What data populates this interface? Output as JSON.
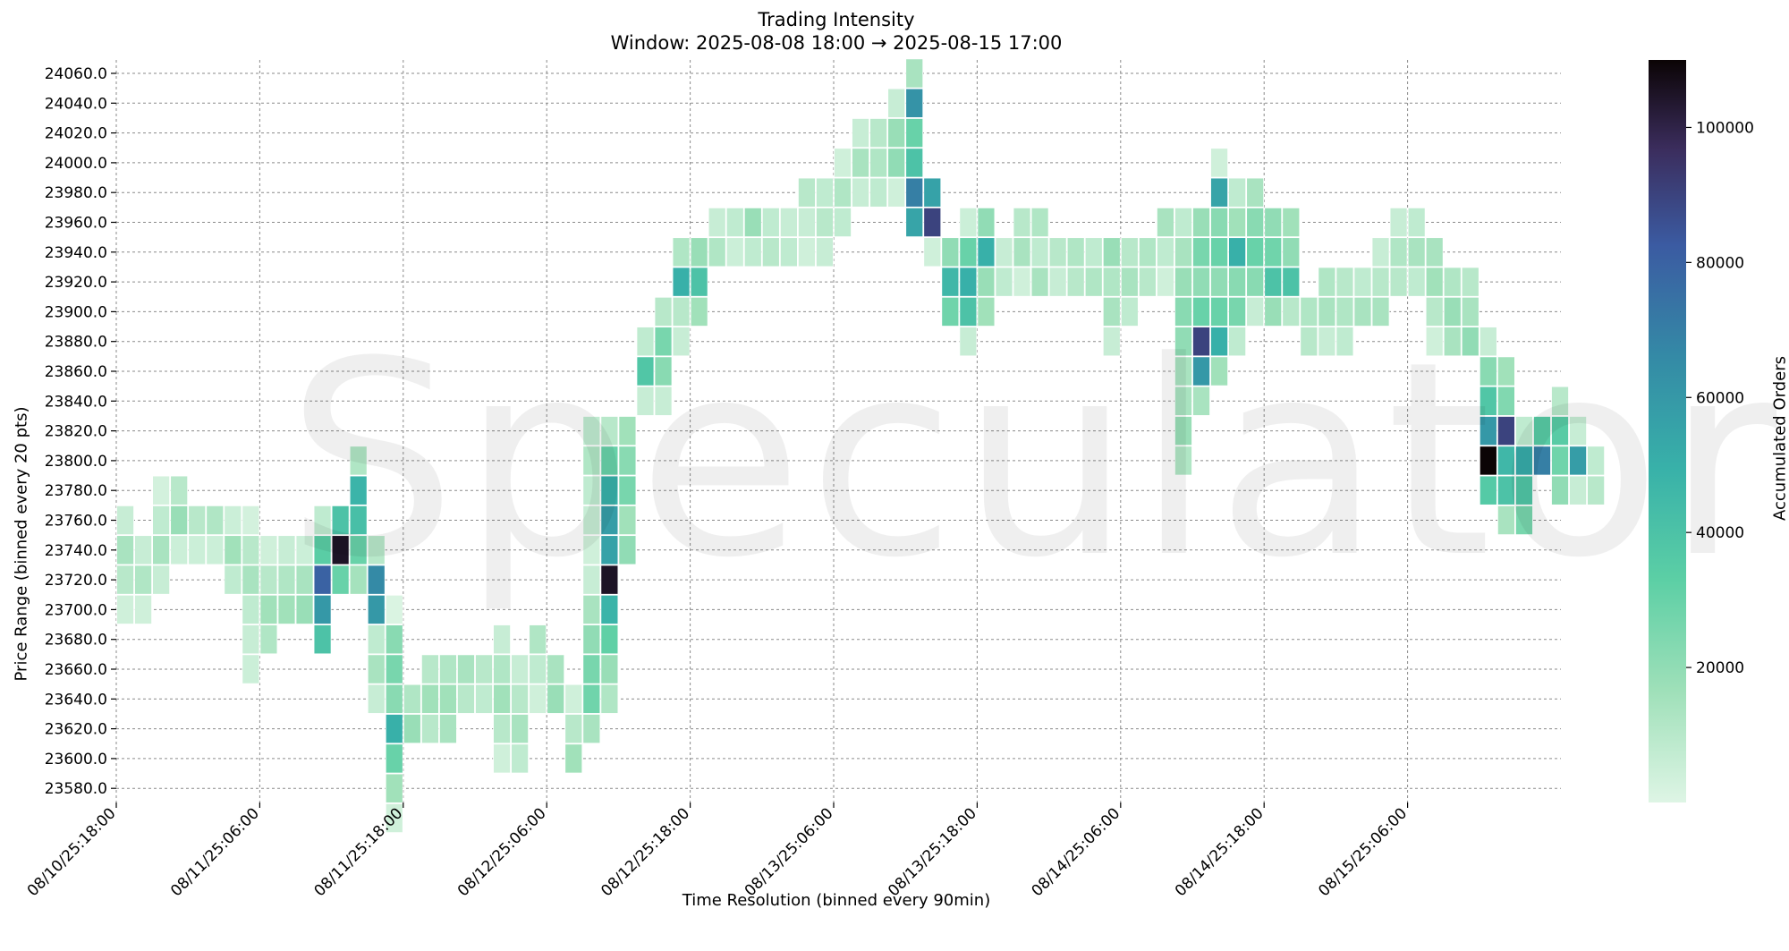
{
  "chart_data": {
    "type": "heatmap",
    "title": "Trading Intensity",
    "subtitle": "Window: 2025-08-08 18:00 → 2025-08-15 17:00",
    "xlabel": "Time Resolution (binned every 90min)",
    "ylabel": "Price Range (binned every 20 pts)",
    "colorbar_label": "Accumulated Orders",
    "colorbar_ticks": [
      "20000",
      "40000",
      "60000",
      "80000",
      "100000"
    ],
    "colorbar_range": [
      0,
      110000
    ],
    "x_tick_labels": [
      "08/10/25:18:00",
      "08/11/25:06:00",
      "08/11/25:18:00",
      "08/12/25:06:00",
      "08/12/25:18:00",
      "08/13/25:06:00",
      "08/13/25:18:00",
      "08/14/25:06:00",
      "08/14/25:18:00",
      "08/15/25:06:00"
    ],
    "y_tick_labels": [
      "24060.0",
      "24040.0",
      "24020.0",
      "24000.0",
      "23980.0",
      "23960.0",
      "23940.0",
      "23920.0",
      "23900.0",
      "23880.0",
      "23860.0",
      "23840.0",
      "23820.0",
      "23800.0",
      "23780.0",
      "23760.0",
      "23740.0",
      "23720.0",
      "23700.0",
      "23680.0",
      "23660.0",
      "23640.0",
      "23620.0",
      "23600.0",
      "23580.0"
    ],
    "columns": [
      {
        "low": 23700,
        "high": 23760,
        "v": [
          6000,
          14000,
          10000,
          4000
        ]
      },
      {
        "low": 23700,
        "high": 23740,
        "v": [
          6000,
          12000,
          4000
        ]
      },
      {
        "low": 23720,
        "high": 23780,
        "v": [
          3000,
          8000,
          14000,
          6000
        ]
      },
      {
        "low": 23740,
        "high": 23780,
        "v": [
          10000,
          18000,
          5000
        ]
      },
      {
        "low": 23740,
        "high": 23760,
        "v": [
          10000,
          5000
        ]
      },
      {
        "low": 23740,
        "high": 23760,
        "v": [
          12000,
          5000
        ]
      },
      {
        "low": 23720,
        "high": 23760,
        "v": [
          5000,
          16000,
          8000
        ]
      },
      {
        "low": 23660,
        "high": 23760,
        "v": [
          3000,
          10000,
          14000,
          8000,
          6000,
          5000
        ]
      },
      {
        "low": 23680,
        "high": 23740,
        "v": [
          4000,
          10000,
          16000,
          12000
        ]
      },
      {
        "low": 23700,
        "high": 23740,
        "v": [
          6000,
          12000,
          16000
        ]
      },
      {
        "low": 23700,
        "high": 23740,
        "v": [
          5000,
          14000,
          18000
        ]
      },
      {
        "low": 23680,
        "high": 23760,
        "v": [
          8000,
          34000,
          80000,
          60000,
          40000
        ]
      },
      {
        "low": 23720,
        "high": 23760,
        "v": [
          40000,
          105000,
          30000
        ]
      },
      {
        "low": 23720,
        "high": 23800,
        "v": [
          12000,
          48000,
          42000,
          30000,
          15000
        ]
      },
      {
        "low": 23640,
        "high": 23740,
        "v": [
          10000,
          66000,
          60000,
          8000,
          14000,
          6000
        ]
      },
      {
        "low": 23580,
        "high": 23700,
        "v": [
          1000,
          22000,
          26000,
          22000,
          50000,
          30000,
          16000,
          4000
        ]
      },
      {
        "low": 23620,
        "high": 23640,
        "v": [
          12000,
          18000
        ]
      },
      {
        "low": 23620,
        "high": 23660,
        "v": [
          10000,
          16000,
          10000
        ]
      },
      {
        "low": 23620,
        "high": 23660,
        "v": [
          12000,
          16000,
          14000
        ]
      },
      {
        "low": 23640,
        "high": 23660,
        "v": [
          14000,
          10000
        ]
      },
      {
        "low": 23640,
        "high": 23660,
        "v": [
          10000,
          8000
        ]
      },
      {
        "low": 23600,
        "high": 23680,
        "v": [
          6000,
          12000,
          16000,
          10000,
          4000
        ]
      },
      {
        "low": 23600,
        "high": 23660,
        "v": [
          6000,
          10000,
          14000,
          8000
        ]
      },
      {
        "low": 23640,
        "high": 23680,
        "v": [
          12000,
          8000,
          4000
        ]
      },
      {
        "low": 23640,
        "high": 23660,
        "v": [
          14000,
          18000
        ]
      },
      {
        "low": 23600,
        "high": 23640,
        "v": [
          4000,
          10000,
          16000
        ]
      },
      {
        "low": 23620,
        "high": 23820,
        "v": [
          8000,
          12000,
          8000,
          6000,
          4000,
          6000,
          14000,
          20000,
          26000,
          28000,
          14000
        ]
      },
      {
        "low": 23620,
        "high": 23820,
        "v": [
          10000,
          30000,
          50000,
          58000,
          56000,
          105000,
          48000,
          32000,
          18000,
          12000
        ]
      },
      {
        "low": 23740,
        "high": 23820,
        "v": [
          16000,
          22000,
          26000,
          16000,
          20000
        ]
      },
      {
        "low": 23840,
        "high": 23880,
        "v": [
          8000,
          38000,
          6000
        ]
      },
      {
        "low": 23840,
        "high": 23900,
        "v": [
          10000,
          26000,
          22000,
          6000
        ]
      },
      {
        "low": 23880,
        "high": 23940,
        "v": [
          12000,
          50000,
          10000,
          6000
        ]
      },
      {
        "low": 23900,
        "high": 23940,
        "v": [
          18000,
          40000,
          16000
        ]
      },
      {
        "low": 23920,
        "high": 23960,
        "v": [
          6000,
          12000
        ]
      },
      {
        "low": 23920,
        "high": 23960,
        "v": [
          8000,
          5000
        ]
      },
      {
        "low": 23940,
        "high": 23960,
        "v": [
          18000,
          8000
        ]
      },
      {
        "low": 23920,
        "high": 23960,
        "v": [
          8000,
          10000
        ]
      },
      {
        "low": 23940,
        "high": 23960,
        "v": [
          6000,
          8000
        ]
      },
      {
        "low": 23940,
        "high": 23980,
        "v": [
          10000,
          6000,
          4000
        ]
      },
      {
        "low": 23940,
        "high": 23980,
        "v": [
          8000,
          10000,
          6000
        ]
      },
      {
        "low": 23960,
        "high": 24000,
        "v": [
          4000,
          12000,
          8000
        ]
      },
      {
        "low": 23980,
        "high": 24020,
        "v": [
          6000,
          14000,
          6000
        ]
      },
      {
        "low": 23980,
        "high": 24020,
        "v": [
          10000,
          12000,
          8000
        ]
      },
      {
        "low": 23980,
        "high": 24040,
        "v": [
          6000,
          18000,
          20000,
          4000
        ]
      },
      {
        "low": 23960,
        "high": 24060,
        "v": [
          14000,
          62000,
          30000,
          40000,
          70000,
          55000
        ]
      },
      {
        "low": 23920,
        "high": 23980,
        "v": [
          56000,
          90000,
          4000
        ]
      },
      {
        "low": 23880,
        "high": 23940,
        "v": [
          20000,
          46000,
          28000
        ]
      },
      {
        "low": 23860,
        "high": 23960,
        "v": [
          5000,
          30000,
          50000,
          40000,
          6000
        ]
      },
      {
        "low": 23900,
        "high": 23960,
        "v": [
          20000,
          50000,
          18000,
          16000
        ]
      },
      {
        "low": 23920,
        "high": 23940,
        "v": [
          6000,
          8000
        ]
      },
      {
        "low": 23920,
        "high": 23960,
        "v": [
          10000,
          14000,
          4000
        ]
      },
      {
        "low": 23920,
        "high": 23960,
        "v": [
          12000,
          8000,
          14000
        ]
      },
      {
        "low": 23920,
        "high": 23940,
        "v": [
          10000,
          6000
        ]
      },
      {
        "low": 23920,
        "high": 23940,
        "v": [
          12000,
          10000
        ]
      },
      {
        "low": 23920,
        "high": 23940,
        "v": [
          8000,
          12000
        ]
      },
      {
        "low": 23880,
        "high": 23940,
        "v": [
          18000,
          12000,
          14000,
          6000
        ]
      },
      {
        "low": 23900,
        "high": 23940,
        "v": [
          10000,
          14000,
          8000
        ]
      },
      {
        "low": 23920,
        "high": 23940,
        "v": [
          12000,
          10000
        ]
      },
      {
        "low": 23920,
        "high": 23960,
        "v": [
          14000,
          8000,
          4000
        ]
      },
      {
        "low": 23800,
        "high": 23960,
        "v": [
          8000,
          14000,
          18000,
          22000,
          20000,
          14000,
          14000,
          18000,
          12000
        ]
      },
      {
        "low": 23820,
        "high": 23960,
        "v": [
          18000,
          26000,
          20000,
          30000,
          90000,
          60000,
          14000
        ]
      },
      {
        "low": 23840,
        "high": 24000,
        "v": [
          4000,
          55000,
          22000,
          30000,
          20000,
          30000,
          50000,
          16000
        ]
      },
      {
        "low": 23860,
        "high": 23980,
        "v": [
          8000,
          16000,
          50000,
          22000,
          26000,
          8000
        ]
      },
      {
        "low": 23880,
        "high": 23980,
        "v": [
          14000,
          22000,
          30000,
          22000,
          6000
        ]
      },
      {
        "low": 23880,
        "high": 23960,
        "v": [
          20000,
          28000,
          40000,
          18000
        ]
      },
      {
        "low": 23880,
        "high": 23960,
        "v": [
          16000,
          20000,
          40000,
          10000
        ]
      },
      {
        "low": 23880,
        "high": 23900,
        "v": [
          12000,
          10000
        ]
      },
      {
        "low": 23880,
        "high": 23920,
        "v": [
          12000,
          14000,
          6000
        ]
      },
      {
        "low": 23880,
        "high": 23920,
        "v": [
          10000,
          12000,
          8000
        ]
      },
      {
        "low": 23900,
        "high": 23920,
        "v": [
          8000,
          14000
        ]
      },
      {
        "low": 23900,
        "high": 23940,
        "v": [
          6000,
          10000,
          14000
        ]
      },
      {
        "low": 23920,
        "high": 23960,
        "v": [
          6000,
          12000,
          10000
        ]
      },
      {
        "low": 23920,
        "high": 23960,
        "v": [
          8000,
          14000,
          8000
        ]
      },
      {
        "low": 23880,
        "high": 23940,
        "v": [
          14000,
          16000,
          10000,
          4000
        ]
      },
      {
        "low": 23880,
        "high": 23920,
        "v": [
          12000,
          18000,
          14000
        ]
      },
      {
        "low": 23880,
        "high": 23920,
        "v": [
          10000,
          14000,
          20000
        ]
      },
      {
        "low": 23760,
        "high": 23880,
        "v": [
          6000,
          22000,
          38000,
          60000,
          110000,
          36000
        ]
      },
      {
        "low": 23740,
        "high": 23860,
        "v": [
          16000,
          24000,
          90000,
          46000,
          40000,
          14000
        ]
      },
      {
        "low": 23760,
        "high": 23820,
        "v": [
          8000,
          52000,
          38000,
          26000
        ]
      },
      {
        "low": 23800,
        "high": 23820,
        "v": [
          35000,
          70000
        ]
      },
      {
        "low": 23780,
        "high": 23840,
        "v": [
          10000,
          35000,
          28000,
          20000
        ]
      },
      {
        "low": 23780,
        "high": 23820,
        "v": [
          6000,
          58000,
          6000
        ]
      },
      {
        "low": 23780,
        "high": 23800,
        "v": [
          8000,
          10000
        ]
      }
    ]
  }
}
